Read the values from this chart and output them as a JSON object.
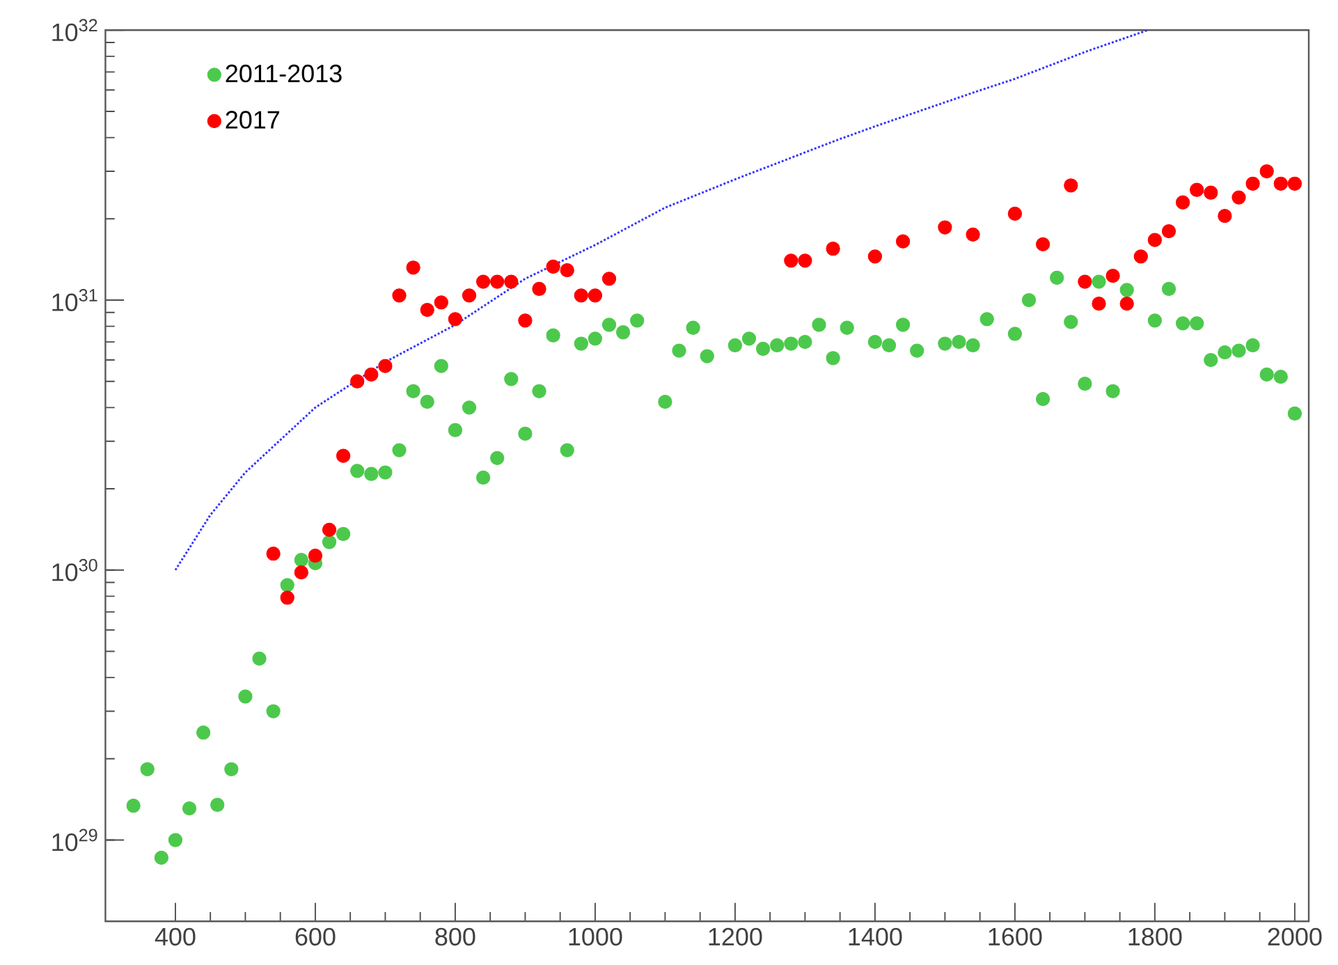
{
  "chart_data": {
    "type": "scatter",
    "marker": "circle",
    "log": "y",
    "legend": "top left",
    "grid": false,
    "xlim": [
      300,
      2020
    ],
    "ylim": [
      5e+28,
      1e+32
    ],
    "xticks": [
      400,
      600,
      800,
      1000,
      1200,
      1400,
      1600,
      1800,
      2000
    ],
    "yticks": [
      {
        "value": 1e+29,
        "label": "10$^{29}$"
      },
      {
        "value": 1e+30,
        "label": "10$^{30}$"
      },
      {
        "value": 1e+31,
        "label": "10$^{31}$"
      },
      {
        "value": 1e+32,
        "label": "10$^{32}$"
      }
    ],
    "series": [
      {
        "name": "2011-2013",
        "color": "#4cc94c",
        "x": [
          340,
          360,
          380,
          400,
          420,
          440,
          460,
          480,
          500,
          520,
          540,
          560,
          580,
          600,
          620,
          640,
          660,
          680,
          700,
          720,
          740,
          760,
          780,
          800,
          820,
          840,
          860,
          880,
          900,
          920,
          940,
          960,
          980,
          1000,
          1020,
          1040,
          1060,
          1100,
          1120,
          1140,
          1160,
          1200,
          1220,
          1240,
          1260,
          1280,
          1300,
          1320,
          1340,
          1360,
          1400,
          1420,
          1440,
          1460,
          1500,
          1520,
          1540,
          1560,
          1600,
          1620,
          1640,
          1660,
          1680,
          1700,
          1720,
          1740,
          1760,
          1800,
          1820,
          1840,
          1860,
          1880,
          1900,
          1920,
          1940,
          1960,
          1980,
          2000
        ],
        "values": [
          1.34e+29,
          1.83e+29,
          8.6e+28,
          1e+29,
          1.31e+29,
          2.5e+29,
          1.35e+29,
          1.83e+29,
          3.4e+29,
          4.7e+29,
          3e+29,
          8.8e+29,
          1.09e+30,
          1.06e+30,
          1.27e+30,
          1.36e+30,
          2.33e+30,
          2.27e+30,
          2.3e+30,
          2.78e+30,
          4.6e+30,
          4.2e+30,
          5.7e+30,
          3.3e+30,
          4e+30,
          2.2e+30,
          2.6e+30,
          5.1e+30,
          3.2e+30,
          4.6e+30,
          7.4e+30,
          2.78e+30,
          6.9e+30,
          7.2e+30,
          8.1e+30,
          7.6e+30,
          8.4e+30,
          4.2e+30,
          6.5e+30,
          7.9e+30,
          6.2e+30,
          6.8e+30,
          7.2e+30,
          6.6e+30,
          6.8e+30,
          6.9e+30,
          7e+30,
          8.1e+30,
          6.1e+30,
          7.9e+30,
          7e+30,
          6.8e+30,
          8.1e+30,
          6.5e+30,
          6.9e+30,
          7e+30,
          6.8e+30,
          8.5e+30,
          7.5e+30,
          1e+31,
          4.3e+30,
          1.21e+31,
          8.3e+30,
          4.9e+30,
          1.17e+31,
          4.6e+30,
          1.09e+31,
          8.4e+30,
          1.1e+31,
          8.2e+30,
          8.2e+30,
          6e+30,
          6.4e+30,
          6.5e+30,
          6.8e+30,
          5.3e+30,
          5.2e+30,
          3.8e+30
        ]
      },
      {
        "name": "2017",
        "color": "#ff0000",
        "x": [
          540,
          560,
          580,
          600,
          620,
          640,
          660,
          680,
          700,
          720,
          740,
          760,
          780,
          800,
          820,
          840,
          860,
          880,
          900,
          920,
          940,
          960,
          980,
          1000,
          1020,
          1280,
          1300,
          1340,
          1400,
          1440,
          1500,
          1540,
          1600,
          1640,
          1680,
          1700,
          1720,
          1740,
          1760,
          1780,
          1800,
          1820,
          1840,
          1860,
          1880,
          1900,
          1920,
          1940,
          1960,
          1980,
          2000
        ],
        "values": [
          1.15e+30,
          7.9e+29,
          9.8e+29,
          1.13e+30,
          1.41e+30,
          2.65e+30,
          5e+30,
          5.3e+30,
          5.7e+30,
          1.04e+31,
          1.32e+31,
          9.2e+30,
          9.8e+30,
          8.5e+30,
          1.04e+31,
          1.17e+31,
          1.17e+31,
          1.17e+31,
          8.4e+30,
          1.1e+31,
          1.33e+31,
          1.29e+31,
          1.04e+31,
          1.04e+31,
          1.2e+31,
          1.4e+31,
          1.4e+31,
          1.55e+31,
          1.45e+31,
          1.65e+31,
          1.86e+31,
          1.75e+31,
          2.09e+31,
          1.61e+31,
          2.66e+31,
          1.17e+31,
          9.7e+30,
          1.23e+31,
          9.7e+30,
          1.45e+31,
          1.67e+31,
          1.8e+31,
          2.3e+31,
          2.56e+31,
          2.5e+31,
          2.05e+31,
          2.4e+31,
          2.7e+31,
          3e+31,
          2.7e+31,
          2.7e+31
        ]
      },
      {
        "type": "line",
        "color": "#3333ff",
        "line_style": "dotted",
        "marker": "none",
        "x": [
          400,
          450,
          500,
          600,
          700,
          800,
          900,
          1000,
          1100,
          1200,
          1344,
          1400,
          1543,
          1600,
          1700,
          1790
        ],
        "values": [
          1e+30,
          1.6e+30,
          2.3e+30,
          4e+30,
          5.9e+30,
          8.1e+30,
          1.2e+31,
          1.6e+31,
          2.2e+31,
          2.8e+31,
          3.9e+31,
          4.4e+31,
          5.9e+31,
          6.6e+31,
          8.3e+31,
          1e+32
        ]
      }
    ]
  }
}
